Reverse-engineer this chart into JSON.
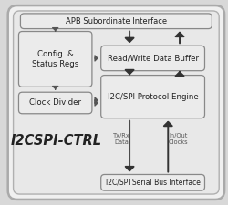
{
  "bg_color": "#d8d8d8",
  "outer_fill": "#f0f0f0",
  "outer_edge": "#aaaaaa",
  "inner_fill": "#e0e0e0",
  "inner_edge": "#999999",
  "box_fill": "#ebebeb",
  "box_edge": "#888888",
  "title": "I2CSPI-CTRL",
  "apb_label": "APB Subordinate Interface",
  "rw_label": "Read/Write Data Buffer",
  "proto_label": "I2C/SPI Protocol Engine",
  "config_label": "Config. &\nStatus Regs",
  "clock_label": "Clock Divider",
  "serial_label": "I2C/SPI Serial Bus Interface",
  "txrx_label": "Tx/Rx\nData",
  "inout_label": "In/Out\nClocks",
  "arrow_color": "#555555",
  "thick_arrow": "#333333"
}
